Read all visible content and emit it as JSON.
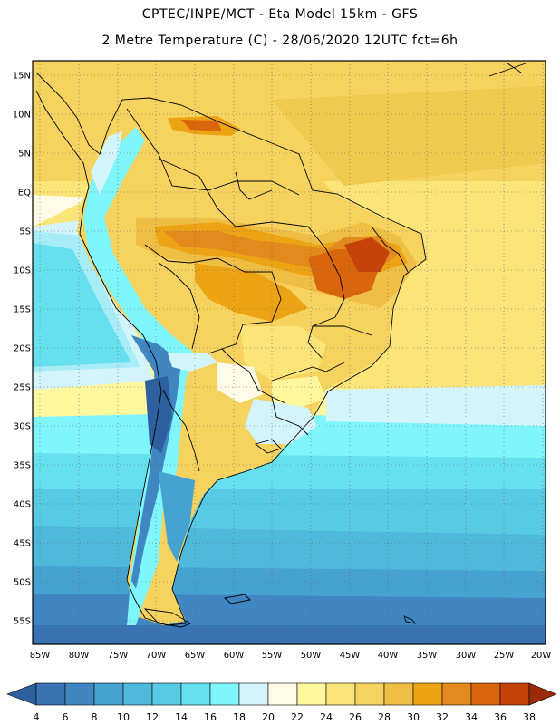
{
  "header": {
    "line1": "CPTEC/INPE/MCT -  Eta Model 15km - GFS",
    "line2": "2 Metre Temperature (C) - 28/06/2020 12UTC fct=6h"
  },
  "map": {
    "lat_labels": [
      "15N",
      "10N",
      "5N",
      "EQ",
      "5S",
      "10S",
      "15S",
      "20S",
      "25S",
      "30S",
      "35S",
      "40S",
      "45S",
      "50S",
      "55S"
    ],
    "lon_labels": [
      "85W",
      "80W",
      "75W",
      "70W",
      "65W",
      "60W",
      "55W",
      "50W",
      "45W",
      "40W",
      "35W",
      "30W",
      "25W",
      "20W"
    ]
  },
  "colorbar": {
    "labels": [
      "4",
      "6",
      "8",
      "10",
      "12",
      "14",
      "16",
      "18",
      "20",
      "22",
      "24",
      "26",
      "28",
      "30",
      "32",
      "34",
      "36",
      "38"
    ],
    "colors": [
      "#3a74b4",
      "#3f86c2",
      "#46a3d1",
      "#4fb9dc",
      "#57cbe4",
      "#66e0ee",
      "#7ef6fb",
      "#d3f4fb",
      "#fffbe6",
      "#fff79e",
      "#fce578",
      "#f6d35e",
      "#efbf45",
      "#eda414",
      "#e48a1d",
      "#d9650c",
      "#c64207",
      "#a82b00"
    ],
    "low_color": "#2e5f9e",
    "high_color": "#9a2a0a"
  }
}
